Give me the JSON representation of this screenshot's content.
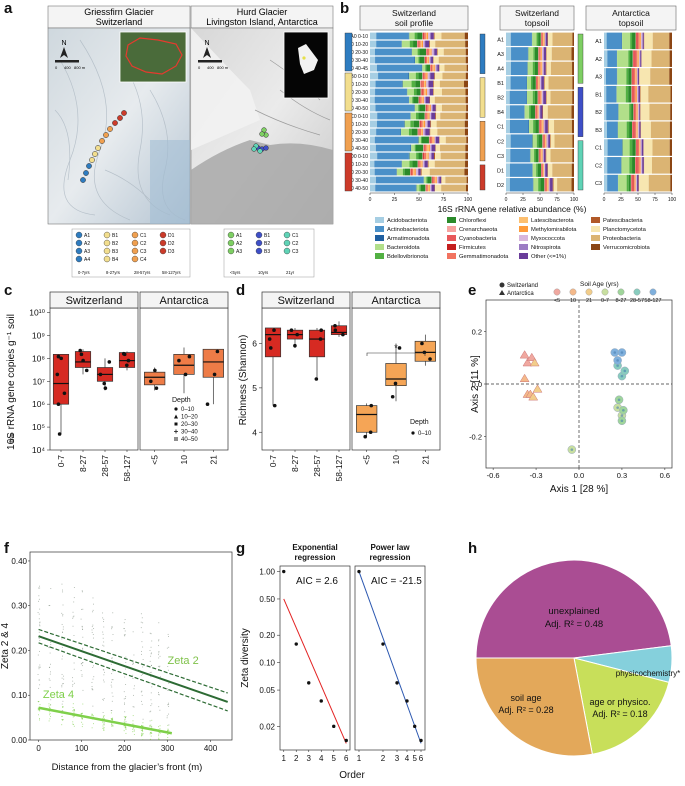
{
  "panel_letters": [
    "a",
    "b",
    "c",
    "d",
    "e",
    "f",
    "g",
    "h"
  ],
  "panel_a": {
    "map1_title": "Griessfirn Glacier",
    "map1_subtitle": "Switzerland",
    "map2_title": "Hurd Glacier",
    "map2_subtitle": "Livingston Island, Antarctica",
    "north_label": "N",
    "scale_labels_ch": [
      "0",
      "400",
      "800 m"
    ],
    "scale_labels_an": [
      "0",
      "400",
      "800 m"
    ],
    "legend_ch": [
      {
        "group": "0-7yrs",
        "items": [
          "A1",
          "A2",
          "A3",
          "A4"
        ],
        "color": "#2e7cc0"
      },
      {
        "group": "8-27yrs",
        "items": [
          "B1",
          "B2",
          "B3",
          "B4"
        ],
        "color": "#f2de8e"
      },
      {
        "group": "28-57yrs",
        "items": [
          "C1",
          "C2",
          "C3",
          "C4"
        ],
        "color": "#f0a050"
      },
      {
        "group": "58-127yrs",
        "items": [
          "D1",
          "D2",
          "D3"
        ],
        "color": "#cc3b2a"
      }
    ],
    "legend_an": [
      {
        "group": "<5yrs",
        "items": [
          "A1",
          "A2",
          "A3"
        ],
        "color": "#7ecf63"
      },
      {
        "group": "10yrs",
        "items": [
          "B1",
          "B2",
          "B3"
        ],
        "color": "#3e4fc8"
      },
      {
        "group": "21yr",
        "items": [
          "C1",
          "C2",
          "C3"
        ],
        "color": "#5fd3b6"
      }
    ]
  },
  "panel_b": {
    "headers": [
      "Switzerland\nsoil profile",
      "Switzerland\ntopsoil",
      "Antarctica\ntopsoil"
    ],
    "profile_labels": [
      "A0 0-10",
      "A0 10-20",
      "A0 20-30",
      "A0 30-40",
      "A0 40-45",
      "B0 0-10",
      "B0 10-20",
      "B0 20-30",
      "B0 30-40",
      "B0 40-50",
      "C0 0-10",
      "C0 10-20",
      "C0 20-30",
      "C0 30-40",
      "C0 40-50",
      "D0 0-10",
      "D0 10-20",
      "D0 20-30",
      "D0 30-40",
      "D0 40-50"
    ],
    "ch_topsoil_labels": [
      "A1",
      "A3",
      "A4",
      "B1",
      "B2",
      "B4",
      "C1",
      "C2",
      "C3",
      "D1",
      "D2"
    ],
    "an_topsoil_labels": [
      "A1",
      "A2",
      "A3",
      "B1",
      "B2",
      "B3",
      "C1",
      "C2",
      "C3"
    ],
    "xlabel": "16S rRNA gene relative abundance (%)",
    "ticks": [
      "0",
      "25",
      "50",
      "75",
      "100"
    ],
    "phyla": [
      {
        "name": "Acidobacteriota",
        "color": "#a6cee3"
      },
      {
        "name": "Actinobacteriota",
        "color": "#4a90c8"
      },
      {
        "name": "Armatimonadota",
        "color": "#1f5fa0"
      },
      {
        "name": "Bacteroidota",
        "color": "#b2df8a"
      },
      {
        "name": "Bdellovibrionota",
        "color": "#52b043"
      },
      {
        "name": "Chloroflexi",
        "color": "#2a8a2a"
      },
      {
        "name": "Crenarchaeota",
        "color": "#f6a3a0"
      },
      {
        "name": "Cyanobacteria",
        "color": "#e8585a"
      },
      {
        "name": "Firmicutes",
        "color": "#c41e1e"
      },
      {
        "name": "Gemmatimonadota",
        "color": "#f27360"
      },
      {
        "name": "Latescibacterota",
        "color": "#fdbf6f"
      },
      {
        "name": "Methylomirabilota",
        "color": "#fe9b3a"
      },
      {
        "name": "Myxococcota",
        "color": "#d8b6dc"
      },
      {
        "name": "Nitrospirota",
        "color": "#9c7cc4"
      },
      {
        "name": "Other (<=1%)",
        "color": "#6a3d9a"
      },
      {
        "name": "Patescibacteria",
        "color": "#b15928"
      },
      {
        "name": "Planctomycetota",
        "color": "#f7e6b0"
      },
      {
        "name": "Proteobacteria",
        "color": "#dbb473"
      },
      {
        "name": "Verrucomicrobiota",
        "color": "#8b4513"
      }
    ]
  },
  "panel_c": {
    "ylabel": "16S rRNA gene copies g⁻¹ soil",
    "ylabel_sub": "dw",
    "facet_labels": [
      "Switzerland",
      "Antarctica"
    ],
    "yticks": [
      "10⁴",
      "10⁵",
      "10⁶",
      "10⁷",
      "10⁸",
      "10⁹",
      "10¹⁰"
    ],
    "xticks_ch": [
      "0-7",
      "8-27",
      "28-57",
      "58-127"
    ],
    "xticks_an": [
      "<5",
      "10",
      "21"
    ],
    "legend_title": "Depth",
    "legend_items": [
      "0–10",
      "10–20",
      "20–30",
      "30–40",
      "40–50"
    ]
  },
  "panel_d": {
    "ylabel": "Richness (Shannon)",
    "facet_labels": [
      "Switzerland",
      "Antarctica"
    ],
    "yticks": [
      "4",
      "5",
      "6"
    ],
    "xticks_ch": [
      "0-7",
      "8-27",
      "28-57",
      "58-127"
    ],
    "xticks_an": [
      "<5",
      "10",
      "21"
    ],
    "legend_title": "Depth",
    "legend_items": [
      "0–10"
    ],
    "sig_mark": "*"
  },
  "panel_e": {
    "legend_loc": [
      "Switzerland",
      "Antarctica"
    ],
    "legend_title": "Soil Age (yrs)",
    "age_items": [
      {
        "label": "<5",
        "color": "#f0a8a0"
      },
      {
        "label": "10",
        "color": "#f4b98a"
      },
      {
        "label": "21",
        "color": "#f2cd8a"
      },
      {
        "label": "0-7",
        "color": "#c8dfa0"
      },
      {
        "label": "8-27",
        "color": "#9fd59a"
      },
      {
        "label": "28-57",
        "color": "#88ccbe"
      },
      {
        "label": "58-127",
        "color": "#7fb0dd"
      }
    ],
    "xlabel": "Axis 1 [28 %]",
    "ylabel": "Axis 2 [11 %]",
    "xticks": [
      "-0.6",
      "-0.3",
      "0.0",
      "0.3",
      "0.6"
    ],
    "yticks": [
      "-0.2",
      "0.0",
      "0.2"
    ]
  },
  "panel_f": {
    "ylabel": "Zeta 2 & 4",
    "xlabel": "Distance from the glacier’s front (m)",
    "yticks": [
      "0.00",
      "0.10",
      "0.20",
      "0.30",
      "0.40"
    ],
    "xticks": [
      "0",
      "100",
      "200",
      "300",
      "400"
    ],
    "series_labels": [
      "Zeta 2",
      "Zeta 4"
    ]
  },
  "panel_g": {
    "titles": [
      "Exponential\nregression",
      "Power law\nregression"
    ],
    "aic": [
      "AIC = 2.6",
      "AIC = -21.5"
    ],
    "ylabel": "Zeta diversity",
    "xlabel": "Order",
    "yticks": [
      "1.00",
      "0.50",
      "0.20",
      "0.10",
      "0.05",
      "0.02"
    ],
    "xticks_exp": [
      "1",
      "2",
      "3",
      "4",
      "5",
      "6"
    ],
    "xticks_pow": [
      "1",
      "2",
      "3",
      "4",
      "5",
      "6"
    ]
  },
  "panel_h": {
    "slices": [
      {
        "label": "unexplained",
        "value_label": "Adj. R² = 0.48",
        "value": 0.48,
        "color": "#aa4d93"
      },
      {
        "label": "physicochemistry*",
        "value_label": "",
        "value": 0.06,
        "color": "#85d0dc"
      },
      {
        "label": "age or physico.",
        "value_label": "Adj. R² = 0.18",
        "value": 0.18,
        "color": "#c8df5a"
      },
      {
        "label": "soil age",
        "value_label": "Adj. R² = 0.28",
        "value": 0.28,
        "color": "#e3a85a"
      }
    ]
  },
  "chart_data": [
    {
      "type": "bar",
      "title": "Switzerland soil profile",
      "xlabel": "16S rRNA gene relative abundance (%)",
      "categories": [
        "A0 0-10",
        "A0 10-20",
        "A0 20-30",
        "A0 30-40",
        "A0 40-45",
        "B0 0-10",
        "B0 10-20",
        "B0 20-30",
        "B0 30-40",
        "B0 40-50",
        "C0 0-10",
        "C0 10-20",
        "C0 20-30",
        "C0 30-40",
        "C0 40-50",
        "D0 0-10",
        "D0 10-20",
        "D0 20-30",
        "D0 30-40",
        "D0 40-50"
      ],
      "stacked": true,
      "xlim": [
        0,
        100
      ]
    },
    {
      "type": "bar",
      "title": "Switzerland topsoil",
      "categories": [
        "A1",
        "A3",
        "A4",
        "B1",
        "B2",
        "B4",
        "C1",
        "C2",
        "C3",
        "D1",
        "D2"
      ],
      "stacked": true
    },
    {
      "type": "bar",
      "title": "Antarctica topsoil",
      "categories": [
        "A1",
        "A2",
        "A3",
        "B1",
        "B2",
        "B3",
        "C1",
        "C2",
        "C3"
      ],
      "stacked": true
    },
    {
      "type": "box",
      "ylabel": "16S rRNA gene copies g-1 soil dw",
      "xlabel": "Soil age (yrs)",
      "yscale": "log",
      "ylim": [
        10000.0,
        10000000000.0
      ],
      "groups": [
        {
          "facet": "Switzerland",
          "category": "0-7",
          "q1": 1000000.0,
          "median": 8000000.0,
          "q3": 150000000.0,
          "lo": 50000.0,
          "hi": 150000000.0,
          "points": [
            100000000.0,
            120000000.0,
            20000000.0,
            3000000.0,
            1000000.0,
            50000.0
          ]
        },
        {
          "facet": "Switzerland",
          "category": "8-27",
          "q1": 40000000.0,
          "median": 70000000.0,
          "q3": 200000000.0,
          "lo": 20000000.0,
          "hi": 250000000.0,
          "points": [
            220000000.0,
            150000000.0,
            80000000.0,
            30000000.0
          ]
        },
        {
          "facet": "Switzerland",
          "category": "28-57",
          "q1": 10000000.0,
          "median": 20000000.0,
          "q3": 40000000.0,
          "lo": 4000000.0,
          "hi": 100000000.0,
          "points": [
            70000000.0,
            20000000.0,
            8000000.0,
            5000000.0
          ]
        },
        {
          "facet": "Switzerland",
          "category": "58-127",
          "q1": 40000000.0,
          "median": 80000000.0,
          "q3": 180000000.0,
          "lo": 30000000.0,
          "hi": 200000000.0,
          "points": [
            150000000.0,
            160000000.0,
            50000000.0,
            80000000.0
          ]
        },
        {
          "facet": "Antarctica",
          "category": "<5",
          "q1": 7000000.0,
          "median": 15000000.0,
          "q3": 25000000.0,
          "lo": 4000000.0,
          "hi": 40000000.0,
          "points": [
            30000000.0,
            10000000.0,
            5000000.0
          ]
        },
        {
          "facet": "Antarctica",
          "category": "10",
          "q1": 20000000.0,
          "median": 50000000.0,
          "q3": 150000000.0,
          "lo": 3000000.0,
          "hi": 300000000.0,
          "points": [
            120000000.0,
            80000000.0,
            20000000.0
          ]
        },
        {
          "facet": "Antarctica",
          "category": "21",
          "q1": 15000000.0,
          "median": 70000000.0,
          "q3": 250000000.0,
          "lo": 1000000.0,
          "hi": 250000000.0,
          "points": [
            200000000.0,
            20000000.0,
            1000000.0
          ]
        }
      ]
    },
    {
      "type": "box",
      "ylabel": "Richness (Shannon)",
      "ylim": [
        3.6,
        6.8
      ],
      "groups": [
        {
          "facet": "Switzerland",
          "category": "0-7",
          "q1": 5.7,
          "median": 6.2,
          "q3": 6.35,
          "lo": 4.6,
          "hi": 6.35,
          "points": [
            6.3,
            6.1,
            5.9,
            4.6
          ]
        },
        {
          "facet": "Switzerland",
          "category": "8-27",
          "q1": 6.1,
          "median": 6.2,
          "q3": 6.3,
          "lo": 5.9,
          "hi": 6.35,
          "points": [
            6.3,
            6.2,
            5.95
          ]
        },
        {
          "facet": "Switzerland",
          "category": "28-57",
          "q1": 5.7,
          "median": 6.1,
          "q3": 6.3,
          "lo": 5.2,
          "hi": 6.35,
          "points": [
            6.3,
            6.1,
            5.2
          ]
        },
        {
          "facet": "Switzerland",
          "category": "58-127",
          "q1": 6.2,
          "median": 6.25,
          "q3": 6.4,
          "lo": 6.15,
          "hi": 6.5,
          "points": [
            6.4,
            6.3,
            6.2
          ]
        },
        {
          "facet": "Antarctica",
          "category": "<5",
          "q1": 4.0,
          "median": 4.4,
          "q3": 4.6,
          "lo": 3.9,
          "hi": 4.65,
          "points": [
            4.6,
            4.0,
            3.9
          ]
        },
        {
          "facet": "Antarctica",
          "category": "10",
          "q1": 5.05,
          "median": 5.2,
          "q3": 5.55,
          "lo": 4.7,
          "hi": 6.0,
          "points": [
            5.9,
            5.1,
            4.8
          ]
        },
        {
          "facet": "Antarctica",
          "category": "21",
          "q1": 5.6,
          "median": 5.8,
          "q3": 6.05,
          "lo": 5.5,
          "hi": 6.2,
          "points": [
            6.0,
            5.8,
            5.65
          ]
        }
      ]
    },
    {
      "type": "scatter",
      "xlabel": "Axis 1 [28 %]",
      "ylabel": "Axis 2 [11 %]",
      "xlim": [
        -0.65,
        0.65
      ],
      "ylim": [
        -0.32,
        0.32
      ],
      "series": [
        {
          "name": "<5",
          "values": [
            [
              -0.38,
              0.11
            ],
            [
              -0.36,
              0.08
            ],
            [
              -0.33,
              0.1
            ]
          ]
        },
        {
          "name": "10",
          "values": [
            [
              -0.38,
              0.02
            ],
            [
              -0.36,
              -0.04
            ],
            [
              -0.34,
              -0.04
            ]
          ]
        },
        {
          "name": "21",
          "values": [
            [
              -0.31,
              0.08
            ],
            [
              -0.29,
              -0.02
            ],
            [
              -0.32,
              -0.05
            ]
          ]
        },
        {
          "name": "0-7",
          "values": [
            [
              -0.05,
              -0.25
            ],
            [
              0.27,
              -0.09
            ],
            [
              0.3,
              -0.12
            ]
          ]
        },
        {
          "name": "8-27",
          "values": [
            [
              0.28,
              -0.06
            ],
            [
              0.31,
              -0.1
            ],
            [
              0.3,
              -0.14
            ]
          ]
        },
        {
          "name": "28-57",
          "values": [
            [
              0.27,
              0.07
            ],
            [
              0.3,
              0.03
            ],
            [
              0.32,
              0.05
            ]
          ]
        },
        {
          "name": "58-127",
          "values": [
            [
              0.25,
              0.12
            ],
            [
              0.3,
              0.12
            ],
            [
              0.27,
              0.09
            ]
          ]
        }
      ]
    },
    {
      "type": "line",
      "xlabel": "Distance from the glacier’s front (m)",
      "ylabel": "Zeta 2 & 4",
      "xlim": [
        -20,
        450
      ],
      "ylim": [
        0,
        0.42
      ],
      "series": [
        {
          "name": "Zeta 2",
          "x": [
            0,
            440
          ],
          "values": [
            0.232,
            0.085
          ]
        },
        {
          "name": "Zeta 4",
          "x": [
            0,
            310
          ],
          "values": [
            0.072,
            0.015
          ]
        }
      ]
    },
    {
      "type": "scatter",
      "title": "Exponential regression",
      "xlabel": "Order",
      "ylabel": "Zeta diversity",
      "yscale": "log",
      "x": [
        1,
        2,
        3,
        4,
        5,
        6
      ],
      "values": [
        1.0,
        0.16,
        0.06,
        0.038,
        0.02,
        0.014
      ],
      "fit": {
        "x": [
          1,
          6
        ],
        "values": [
          0.5,
          0.013
        ]
      }
    },
    {
      "type": "scatter",
      "title": "Power law regression",
      "xlabel": "Order",
      "ylabel": "Zeta diversity",
      "xscale": "log",
      "yscale": "log",
      "x": [
        1,
        2,
        3,
        4,
        5,
        6
      ],
      "values": [
        1.0,
        0.16,
        0.06,
        0.038,
        0.02,
        0.014
      ],
      "fit": {
        "x": [
          1,
          6
        ],
        "values": [
          1.0,
          0.013
        ]
      }
    },
    {
      "type": "pie",
      "categories": [
        "unexplained",
        "physicochemistry*",
        "age or physico.",
        "soil age"
      ],
      "values": [
        0.48,
        0.06,
        0.18,
        0.28
      ]
    }
  ]
}
